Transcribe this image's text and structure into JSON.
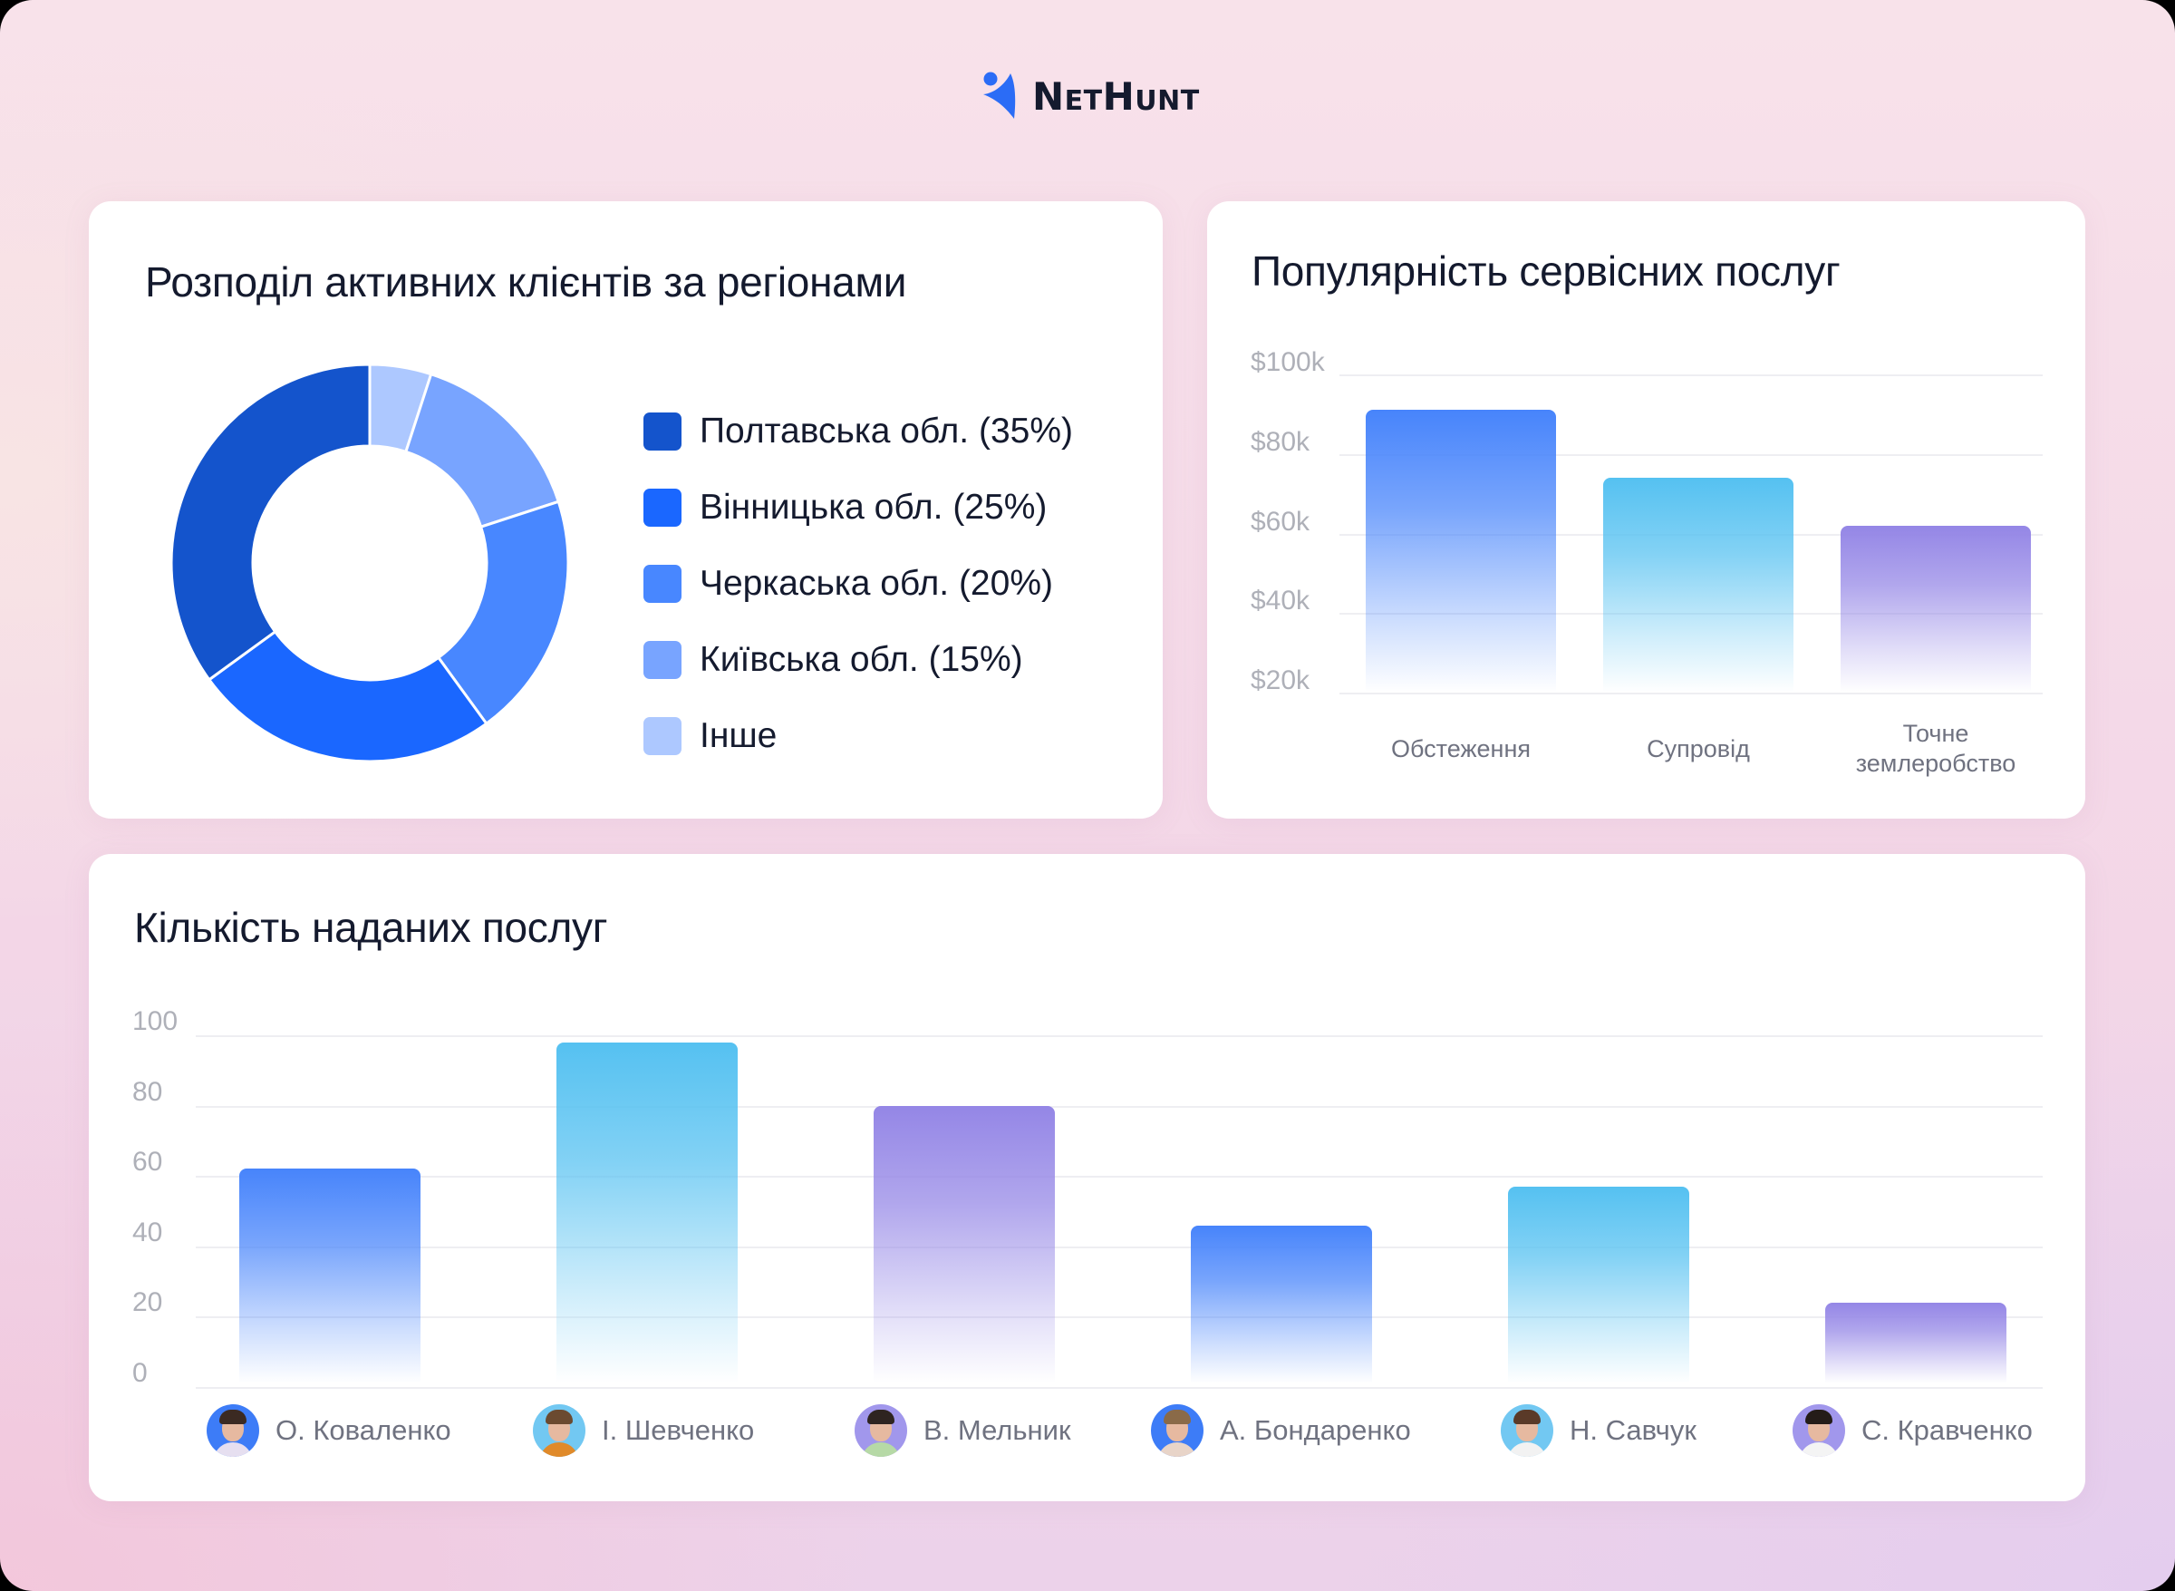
{
  "brand": {
    "name_part1": "Net",
    "name_part2": "Hunt",
    "mark_color": "#2b6cf6",
    "text_color": "#141a2e"
  },
  "cards": {
    "donut": {
      "title": "Розподіл активних клієнтів за регіонами",
      "legend": [
        {
          "label": "Полтавська обл. (35%)",
          "color": "#1454cc"
        },
        {
          "label": "Вінницька обл. (25%)",
          "color": "#1a67ff"
        },
        {
          "label": "Черкаська обл. (20%)",
          "color": "#4887ff"
        },
        {
          "label": "Київська обл. (15%)",
          "color": "#78a4ff"
        },
        {
          "label": "Інше",
          "color": "#adc8ff"
        }
      ]
    },
    "revenue": {
      "title": "Популярність сервісних послуг",
      "y_ticks": [
        "$100k",
        "$80k",
        "$60k",
        "$40k",
        "$20k"
      ],
      "categories": [
        {
          "label_line1": "Обстеження",
          "label_line2": ""
        },
        {
          "label_line1": "Супровід",
          "label_line2": ""
        },
        {
          "label_line1": "Точне",
          "label_line2": "землеробство"
        }
      ]
    },
    "count": {
      "title": "Кількість наданих послуг",
      "y_ticks": [
        "100",
        "80",
        "60",
        "40",
        "20",
        "0"
      ],
      "people": [
        {
          "name": "О. Коваленко",
          "avatar_bg": "#3d7cf7",
          "hair": "#3b2a22",
          "shirt": "#e6dff0"
        },
        {
          "name": "І. Шевченко",
          "avatar_bg": "#72c8f2",
          "hair": "#6b4a30",
          "shirt": "#e08a2a"
        },
        {
          "name": "В. Мельник",
          "avatar_bg": "#a197ec",
          "hair": "#2e2420",
          "shirt": "#b6d9a6"
        },
        {
          "name": "А. Бондаренко",
          "avatar_bg": "#3d7cf7",
          "hair": "#8a6a48",
          "shirt": "#e8d4c8"
        },
        {
          "name": "Н. Савчук",
          "avatar_bg": "#72c8f2",
          "hair": "#5a3a28",
          "shirt": "#f2f2f2"
        },
        {
          "name": "С. Кравченко",
          "avatar_bg": "#a197ec",
          "hair": "#241c18",
          "shirt": "#f4f4f4"
        }
      ]
    }
  },
  "chart_data": [
    {
      "type": "pie",
      "title": "Розподіл активних клієнтів за регіонами",
      "categories": [
        "Полтавська обл.",
        "Вінницька обл.",
        "Черкаська обл.",
        "Київська обл.",
        "Інше"
      ],
      "values": [
        35,
        25,
        20,
        15,
        5
      ],
      "colors": [
        "#1454cc",
        "#1a67ff",
        "#4887ff",
        "#78a4ff",
        "#adc8ff"
      ],
      "donut": true,
      "start_angle": "12 o'clock, clockwise order: Інше, Київська, Черкаська, Вінницька, Полтавська",
      "legend_position": "right"
    },
    {
      "type": "bar",
      "title": "Популярність сервісних послуг",
      "categories": [
        "Обстеження",
        "Супровід",
        "Точне землеробство"
      ],
      "values": [
        91,
        74,
        62
      ],
      "unit": "$k",
      "colors": [
        "#4784fb",
        "#55c1f1",
        "#9486e6"
      ],
      "ylim": [
        20,
        100
      ],
      "y_ticks": [
        "$20k",
        "$40k",
        "$60k",
        "$80k",
        "$100k"
      ],
      "xlabel": "",
      "ylabel": "",
      "grid": true
    },
    {
      "type": "bar",
      "title": "Кількість наданих послуг",
      "categories": [
        "О. Коваленко",
        "І. Шевченко",
        "В. Мельник",
        "А. Бондаренко",
        "Н. Савчук",
        "С. Кравченко"
      ],
      "values": [
        62,
        98,
        80,
        46,
        57,
        24
      ],
      "colors": [
        "#4784fb",
        "#55c1f1",
        "#9486e6",
        "#4784fb",
        "#55c1f1",
        "#9486e6"
      ],
      "ylim": [
        0,
        100
      ],
      "y_ticks": [
        0,
        20,
        40,
        60,
        80,
        100
      ],
      "xlabel": "",
      "ylabel": "",
      "grid": true
    }
  ]
}
